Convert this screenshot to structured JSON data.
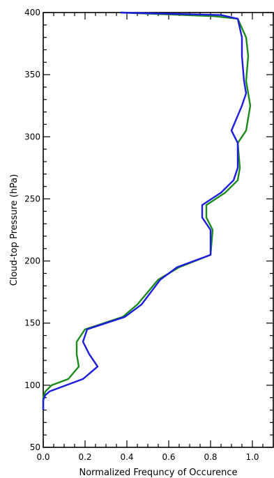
{
  "chart_data": {
    "type": "line",
    "title": "",
    "xlabel": "Normalized Frequncy of Occurence",
    "ylabel": "Cloud-top Pressure (hPa)",
    "xlim": [
      0.0,
      1.1
    ],
    "ylim": [
      50,
      400
    ],
    "x_ticks": [
      "0.0",
      "0.2",
      "0.4",
      "0.6",
      "0.8",
      "1.0"
    ],
    "x_tick_values": [
      0.0,
      0.2,
      0.4,
      0.6,
      0.8,
      1.0
    ],
    "y_ticks": [
      "50",
      "100",
      "150",
      "200",
      "250",
      "300",
      "350",
      "400"
    ],
    "y_tick_values": [
      50,
      100,
      150,
      200,
      250,
      300,
      350,
      400
    ],
    "grid": false,
    "legend": "none",
    "series": [
      {
        "color": "#1a8a1a",
        "x": [
          0.0,
          0.0,
          0.01,
          0.04,
          0.12,
          0.17,
          0.16,
          0.16,
          0.2,
          0.38,
          0.45,
          0.55,
          0.65,
          0.8,
          0.81,
          0.78,
          0.78,
          0.87,
          0.93,
          0.94,
          0.93,
          0.97,
          0.99,
          0.98,
          0.97,
          0.98,
          0.97,
          0.93,
          0.82,
          0.37
        ],
        "y": [
          80,
          90,
          95,
          100,
          105,
          115,
          125,
          135,
          145,
          155,
          165,
          185,
          195,
          205,
          225,
          235,
          245,
          255,
          265,
          275,
          295,
          305,
          325,
          335,
          345,
          365,
          380,
          395,
          397,
          400
        ]
      },
      {
        "color": "#1c1cdc",
        "x": [
          0.0,
          0.0,
          0.01,
          0.03,
          0.19,
          0.26,
          0.22,
          0.19,
          0.21,
          0.39,
          0.47,
          0.56,
          0.64,
          0.8,
          0.8,
          0.76,
          0.76,
          0.85,
          0.91,
          0.93,
          0.93,
          0.9,
          0.95,
          0.97,
          0.96,
          0.95,
          0.95,
          0.93,
          0.85,
          0.37
        ],
        "y": [
          80,
          88,
          92,
          95,
          105,
          115,
          125,
          135,
          145,
          155,
          165,
          185,
          195,
          205,
          225,
          235,
          245,
          255,
          265,
          275,
          295,
          305,
          325,
          335,
          345,
          365,
          380,
          395,
          398,
          400
        ]
      }
    ]
  }
}
